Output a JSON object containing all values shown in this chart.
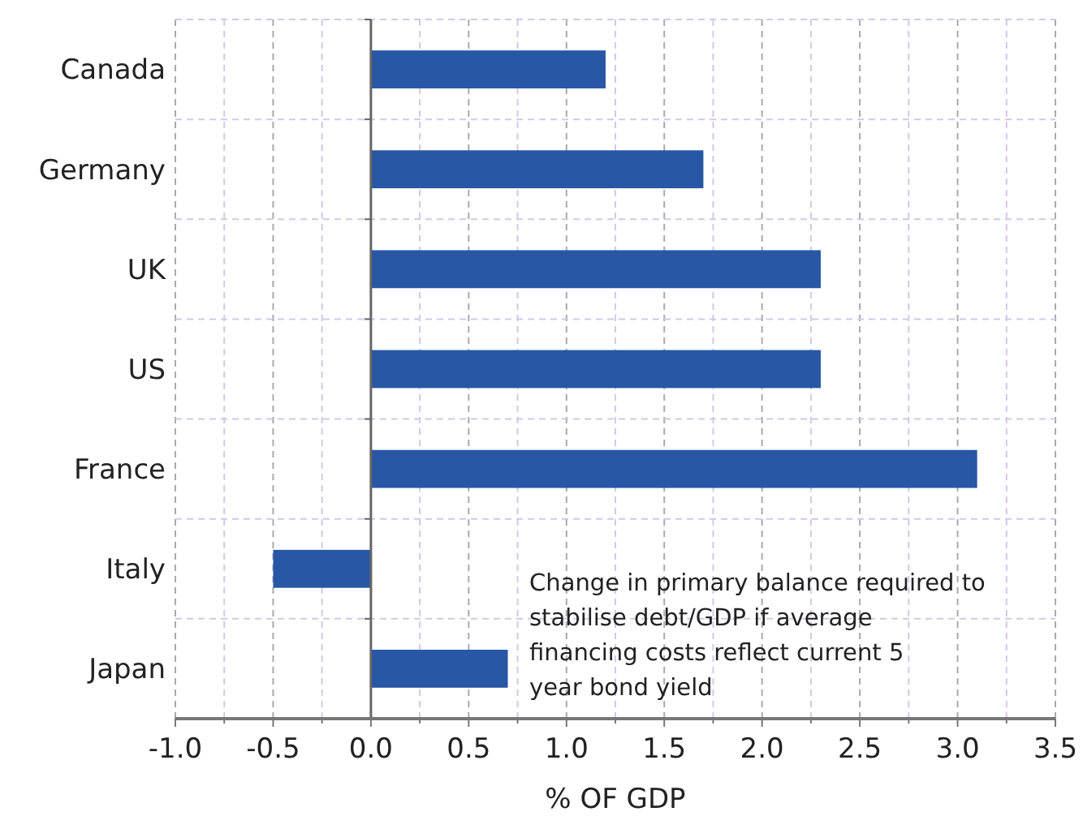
{
  "chart_data": {
    "type": "bar",
    "orientation": "horizontal",
    "xlabel": "% OF GDP",
    "categories": [
      "Canada",
      "Germany",
      "UK",
      "US",
      "France",
      "Italy",
      "Japan"
    ],
    "values": [
      1.2,
      1.7,
      2.3,
      2.3,
      3.1,
      -0.5,
      0.7
    ],
    "color": "#2757a5",
    "xlim": [
      -1.0,
      3.5
    ],
    "xticks": [
      {
        "value": -1.0,
        "label": "-1.0"
      },
      {
        "value": -0.75,
        "label": null
      },
      {
        "value": -0.5,
        "label": "-0.5"
      },
      {
        "value": -0.25,
        "label": null
      },
      {
        "value": 0,
        "label": "0.0"
      },
      {
        "value": 0.25,
        "label": null
      },
      {
        "value": 0.5,
        "label": "0.5"
      },
      {
        "value": 0.75,
        "label": null
      },
      {
        "value": 1.0,
        "label": "1.0"
      },
      {
        "value": 1.25,
        "label": null
      },
      {
        "value": 1.5,
        "label": "1.5"
      },
      {
        "value": 1.75,
        "label": null
      },
      {
        "value": 2.0,
        "label": "2.0"
      },
      {
        "value": 2.25,
        "label": null
      },
      {
        "value": 2.5,
        "label": "2.5"
      },
      {
        "value": 2.75,
        "label": null
      },
      {
        "value": 3.0,
        "label": "3.0"
      },
      {
        "value": 3.25,
        "label": null
      },
      {
        "value": 3.5,
        "label": "3.5"
      }
    ],
    "grid": true,
    "annotations": [
      "Change in primary balance required to stabilise debt/GDP if average financing costs reflect current 5 year bond yield"
    ]
  }
}
